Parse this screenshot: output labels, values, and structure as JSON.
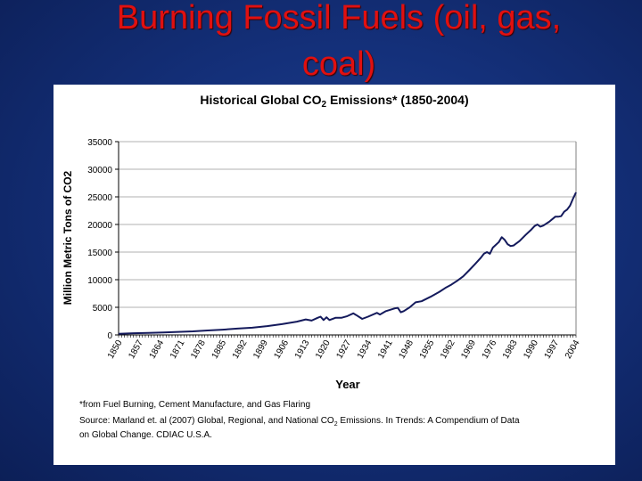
{
  "slide": {
    "title_line1": "Burning Fossil Fuels (oil, gas,",
    "title_line2": "coal)"
  },
  "chart_data": {
    "type": "line",
    "title_prefix": "Historical Global CO",
    "title_sub": "2",
    "title_suffix": " Emissions* (1850-2004)",
    "xlabel": "Year",
    "ylabel": "Million Metric Tons of CO2",
    "ylim": [
      0,
      35000
    ],
    "xlim": [
      1850,
      2004
    ],
    "yticks": [
      "0",
      "5000",
      "10000",
      "15000",
      "20000",
      "25000",
      "30000",
      "35000"
    ],
    "xticks": [
      "1850",
      "1857",
      "1864",
      "1871",
      "1878",
      "1885",
      "1892",
      "1899",
      "1906",
      "1913",
      "1920",
      "1927",
      "1934",
      "1941",
      "1948",
      "1955",
      "1962",
      "1969",
      "1976",
      "1983",
      "1990",
      "1997",
      "2004"
    ],
    "grid": true,
    "series": [
      {
        "name": "Global CO2 Emissions",
        "color": "#141a5c",
        "points": [
          [
            1850,
            200
          ],
          [
            1855,
            300
          ],
          [
            1860,
            350
          ],
          [
            1865,
            450
          ],
          [
            1870,
            550
          ],
          [
            1875,
            650
          ],
          [
            1880,
            800
          ],
          [
            1885,
            950
          ],
          [
            1890,
            1150
          ],
          [
            1895,
            1300
          ],
          [
            1900,
            1600
          ],
          [
            1905,
            1950
          ],
          [
            1910,
            2400
          ],
          [
            1913,
            2800
          ],
          [
            1915,
            2600
          ],
          [
            1917,
            3100
          ],
          [
            1918,
            3300
          ],
          [
            1919,
            2700
          ],
          [
            1920,
            3200
          ],
          [
            1921,
            2700
          ],
          [
            1923,
            3100
          ],
          [
            1925,
            3100
          ],
          [
            1927,
            3400
          ],
          [
            1929,
            3900
          ],
          [
            1930,
            3600
          ],
          [
            1932,
            2900
          ],
          [
            1934,
            3300
          ],
          [
            1937,
            4000
          ],
          [
            1938,
            3700
          ],
          [
            1940,
            4300
          ],
          [
            1943,
            4800
          ],
          [
            1944,
            4900
          ],
          [
            1945,
            4100
          ],
          [
            1946,
            4300
          ],
          [
            1948,
            5000
          ],
          [
            1950,
            5900
          ],
          [
            1952,
            6100
          ],
          [
            1955,
            6900
          ],
          [
            1958,
            7800
          ],
          [
            1960,
            8500
          ],
          [
            1962,
            9100
          ],
          [
            1964,
            9800
          ],
          [
            1966,
            10600
          ],
          [
            1968,
            11700
          ],
          [
            1970,
            12800
          ],
          [
            1972,
            14000
          ],
          [
            1973,
            14700
          ],
          [
            1974,
            15000
          ],
          [
            1975,
            14700
          ],
          [
            1976,
            15800
          ],
          [
            1978,
            16800
          ],
          [
            1979,
            17700
          ],
          [
            1980,
            17200
          ],
          [
            1981,
            16400
          ],
          [
            1982,
            16100
          ],
          [
            1983,
            16200
          ],
          [
            1985,
            17000
          ],
          [
            1987,
            18100
          ],
          [
            1989,
            19100
          ],
          [
            1990,
            19700
          ],
          [
            1991,
            20000
          ],
          [
            1992,
            19600
          ],
          [
            1993,
            19800
          ],
          [
            1995,
            20500
          ],
          [
            1997,
            21400
          ],
          [
            1998,
            21400
          ],
          [
            1999,
            21500
          ],
          [
            2000,
            22300
          ],
          [
            2001,
            22700
          ],
          [
            2002,
            23400
          ],
          [
            2003,
            24700
          ],
          [
            2004,
            25800
          ]
        ]
      }
    ]
  },
  "footnote": {
    "line1": "*from Fuel Burning, Cement Manufacture, and Gas Flaring",
    "line2_a": "Source: Marland et. al (2007) Global, Regional, and National CO",
    "line2_sub": "2",
    "line2_b": " Emissions. In Trends: A Compendium of Data",
    "line3": "on Global Change. CDIAC U.S.A."
  }
}
